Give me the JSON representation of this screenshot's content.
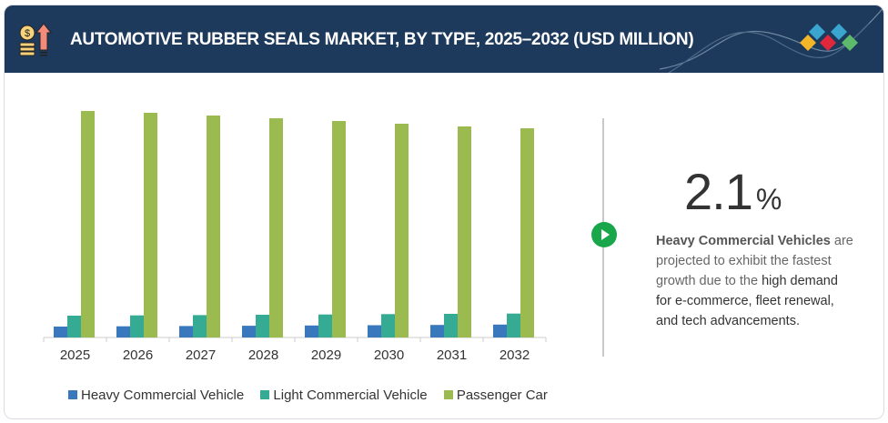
{
  "header": {
    "title": "AUTOMOTIVE RUBBER SEALS MARKET, BY TYPE, 2025–2032 (USD MILLION)",
    "icon": "money-growth-icon",
    "logo": "brand-diamonds-logo"
  },
  "callout": {
    "value": "2.1",
    "unit": "%",
    "highlight": "Heavy Commercial Vehicles",
    "text1": "are projected to exhibit the fastest growth due to the",
    "text2": "high demand for e-commerce, fleet renewal, and tech advancements."
  },
  "chart_data": {
    "type": "bar",
    "title": "AUTOMOTIVE RUBBER SEALS MARKET, BY TYPE, 2025–2032 (USD MILLION)",
    "xlabel": "",
    "ylabel": "",
    "categories": [
      "2025",
      "2026",
      "2027",
      "2028",
      "2029",
      "2030",
      "2031",
      "2032"
    ],
    "series": [
      {
        "name": "Heavy Commercial Vehicle",
        "color": "#3a78bd",
        "values": [
          12,
          12.3,
          12.6,
          12.9,
          13.2,
          13.5,
          13.8,
          14.2
        ]
      },
      {
        "name": "Light Commercial Vehicle",
        "color": "#35ab93",
        "values": [
          24,
          24.3,
          24.6,
          25,
          25.3,
          25.7,
          26,
          26.3
        ]
      },
      {
        "name": "Passenger Car",
        "color": "#9bbb51",
        "values": [
          249,
          247,
          244,
          241,
          238,
          235,
          232,
          230
        ]
      }
    ],
    "ylim": [
      0,
      260
    ],
    "grid": false,
    "legend": "bottom"
  }
}
